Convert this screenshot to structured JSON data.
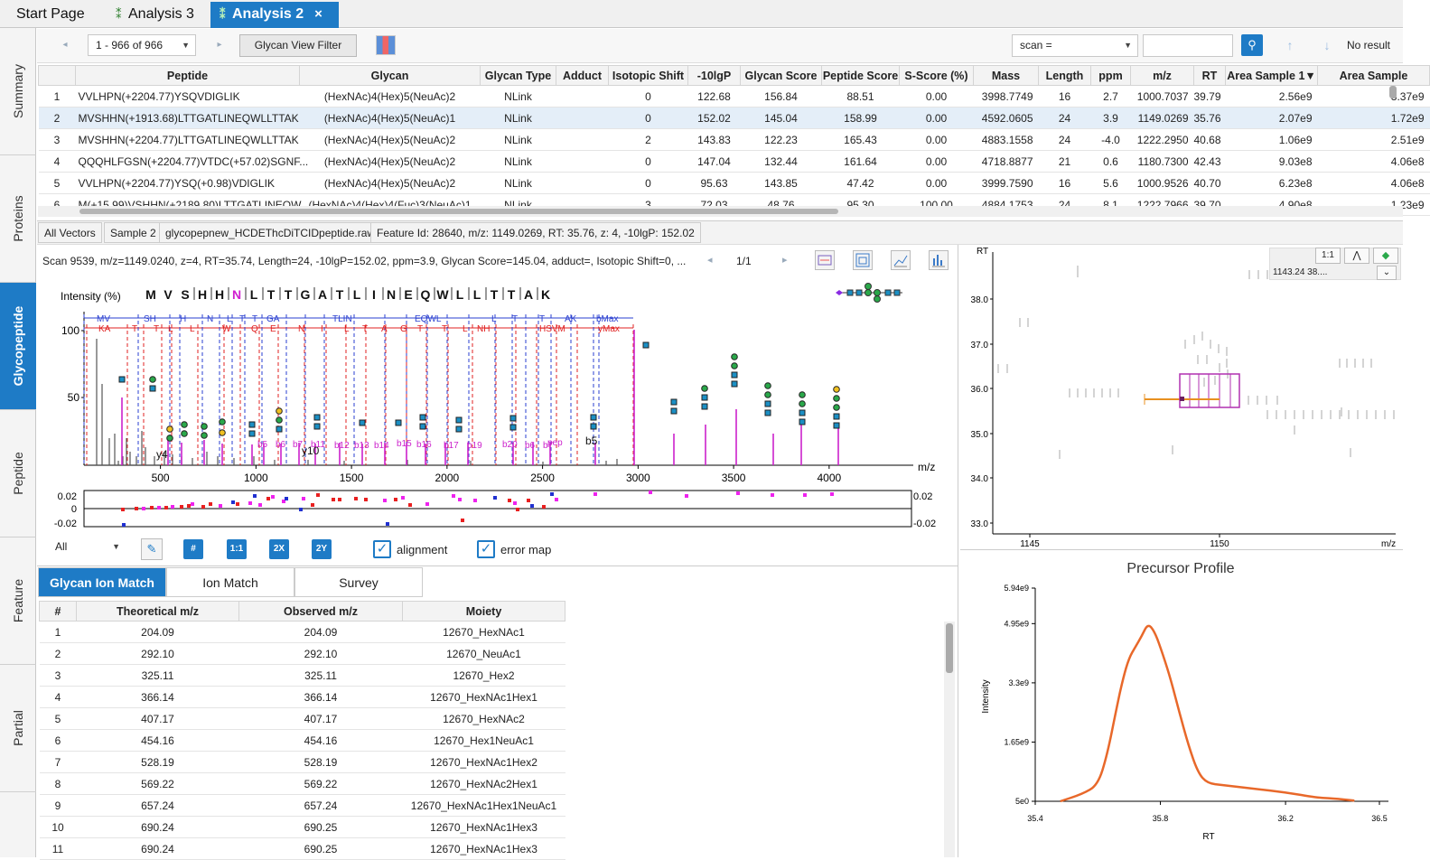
{
  "tabs": [
    {
      "label": "Start Page"
    },
    {
      "label": "Analysis 3"
    },
    {
      "label": "Analysis 2"
    }
  ],
  "close_glyph": "×",
  "side_tabs": [
    "Summary",
    "Proteins",
    "Glycopeptide",
    "Peptide",
    "Feature",
    "Partial"
  ],
  "toolbar": {
    "page_range": "1 - 966 of 966",
    "filter_button": "Glycan View Filter",
    "search_field": "scan =",
    "search_value": "",
    "no_result": "No result"
  },
  "table": {
    "columns": [
      "",
      "Peptide",
      "Glycan",
      "Glycan Type",
      "Adduct",
      "Isotopic Shift",
      "-10lgP",
      "Glycan Score",
      "Peptide Score",
      "S-Score (%)",
      "Mass",
      "Length",
      "ppm",
      "m/z",
      "RT",
      "Area Sample 1▼",
      "Area Sample"
    ],
    "rows": [
      [
        "1",
        "VVLHPN(+2204.77)YSQVDIGLIK",
        "(HexNAc)4(Hex)5(NeuAc)2",
        "NLink",
        "",
        "0",
        "122.68",
        "156.84",
        "88.51",
        "0.00",
        "3998.7749",
        "16",
        "2.7",
        "1000.7037",
        "39.79",
        "2.56e9",
        "3.37e9"
      ],
      [
        "2",
        "MVSHHN(+1913.68)LTTGATLINEQWLLTTAK",
        "(HexNAc)4(Hex)5(NeuAc)1",
        "NLink",
        "",
        "0",
        "152.02",
        "145.04",
        "158.99",
        "0.00",
        "4592.0605",
        "24",
        "3.9",
        "1149.0269",
        "35.76",
        "2.07e9",
        "1.72e9"
      ],
      [
        "3",
        "MVSHHN(+2204.77)LTTGATLINEQWLLTTAK",
        "(HexNAc)4(Hex)5(NeuAc)2",
        "NLink",
        "",
        "2",
        "143.83",
        "122.23",
        "165.43",
        "0.00",
        "4883.1558",
        "24",
        "-4.0",
        "1222.2950",
        "40.68",
        "1.06e9",
        "2.51e9"
      ],
      [
        "4",
        "QQQHLFGSN(+2204.77)VTDC(+57.02)SGNF...",
        "(HexNAc)4(Hex)5(NeuAc)2",
        "NLink",
        "",
        "0",
        "147.04",
        "132.44",
        "161.64",
        "0.00",
        "4718.8877",
        "21",
        "0.6",
        "1180.7300",
        "42.43",
        "9.03e8",
        "4.06e8"
      ],
      [
        "5",
        "VVLHPN(+2204.77)YSQ(+0.98)VDIGLIK",
        "(HexNAc)4(Hex)5(NeuAc)2",
        "NLink",
        "",
        "0",
        "95.63",
        "143.85",
        "47.42",
        "0.00",
        "3999.7590",
        "16",
        "5.6",
        "1000.9526",
        "40.70",
        "6.23e8",
        "4.06e8"
      ],
      [
        "6",
        "M(+15.99)VSHHN(+2189.80)LTTGATLINEQW...",
        "(HexNAc)4(Hex)4(Fuc)3(NeuAc)1",
        "NLink",
        "",
        "3",
        "72.03",
        "48.76",
        "95.30",
        "100.00",
        "4884.1753",
        "24",
        "8.1",
        "1222.7966",
        "39.70",
        "4.90e8",
        "1.23e9"
      ]
    ]
  },
  "breadcrumb": [
    "All Vectors",
    "Sample 2",
    "glycopepnew_HCDEThcDiTCIDpeptide.raw",
    "Feature Id: 28640, m/z: 1149.0269, RT: 35.76, z: 4, -10lgP: 152.02"
  ],
  "spectrum": {
    "info": "Scan 9539, m/z=1149.0240, z=4, RT=35.74, Length=24, -10lgP=152.02, ppm=3.9, Glycan Score=145.04, adduct=, Isotopic Shift=0, ...",
    "page": "1/1",
    "ylabel": "Intensity (%)",
    "sequence": [
      "M",
      "V",
      "S",
      "H",
      "H",
      "N",
      "L",
      "T",
      "T",
      "G",
      "A",
      "T",
      "L",
      "I",
      "N",
      "E",
      "Q",
      "W",
      "L",
      "L",
      "T",
      "T",
      "A",
      "K"
    ],
    "xlabel": "m/z",
    "y_ticks": [
      "100",
      "50"
    ],
    "x_ticks": [
      "500",
      "1000",
      "1500",
      "2000",
      "2500",
      "3000",
      "3500",
      "4000"
    ],
    "b_labels": [
      "MV",
      "SH",
      "H",
      "N",
      "L",
      "T",
      "T",
      "GA",
      "TLIN",
      "EQWL",
      "L",
      "T",
      "T",
      "AK",
      "bMax"
    ],
    "y_labels": [
      "KA",
      "T",
      "T",
      "L",
      "L",
      "W",
      "Q",
      "E",
      "N",
      "I",
      "L",
      "T",
      "A",
      "G",
      "T",
      "T",
      "L",
      "NH",
      "HSVM",
      "yMax"
    ],
    "peak_labels": [
      "y4",
      "y10",
      "b5",
      "b6",
      "b7",
      "b11",
      "b12",
      "b13",
      "b14",
      "b15",
      "b16",
      "b17",
      "b19",
      "b20",
      "pep",
      "b5",
      "b6",
      "b7"
    ],
    "error_ticks": [
      "0.02",
      "0",
      "-0.02"
    ],
    "error_ticks_right": [
      "0.02",
      "-0.02"
    ],
    "filter_select": "All",
    "btn_hash": "#",
    "btn_11": "1:1",
    "btn_2x": "2X",
    "btn_2y": "2Y",
    "alignment_label": "alignment",
    "errormap_label": "error map",
    "colors": {
      "b_ion": "#2a3fd0",
      "y_ion": "#e02020",
      "glyco_peak": "#cc22cc",
      "peak": "#555555",
      "hexnac": "#1b8fc4",
      "hex": "#2aa84a",
      "neuac": "#8a2be2",
      "gal": "#f0c020"
    }
  },
  "heatmap": {
    "ylabel": "RT",
    "xlabel": "m/z",
    "y_ticks": [
      "38.0",
      "37.0",
      "36.0",
      "35.0",
      "34.0",
      "33.0"
    ],
    "x_ticks": [
      "1145",
      "1150"
    ],
    "tooltip": "1143.24 38....",
    "btn_11": "1:1"
  },
  "ion_tabs": [
    "Glycan Ion Match",
    "Ion Match",
    "Survey"
  ],
  "ion_table": {
    "columns": [
      "#",
      "Theoretical m/z",
      "Observed m/z",
      "Moiety"
    ],
    "rows": [
      [
        "1",
        "204.09",
        "204.09",
        "12670_HexNAc1"
      ],
      [
        "2",
        "292.10",
        "292.10",
        "12670_NeuAc1"
      ],
      [
        "3",
        "325.11",
        "325.11",
        "12670_Hex2"
      ],
      [
        "4",
        "366.14",
        "366.14",
        "12670_HexNAc1Hex1"
      ],
      [
        "5",
        "407.17",
        "407.17",
        "12670_HexNAc2"
      ],
      [
        "6",
        "454.16",
        "454.16",
        "12670_Hex1NeuAc1"
      ],
      [
        "7",
        "528.19",
        "528.19",
        "12670_HexNAc1Hex2"
      ],
      [
        "8",
        "569.22",
        "569.22",
        "12670_HexNAc2Hex1"
      ],
      [
        "9",
        "657.24",
        "657.24",
        "12670_HexNAc1Hex1NeuAc1"
      ],
      [
        "10",
        "690.24",
        "690.25",
        "12670_HexNAc1Hex3"
      ],
      [
        "11",
        "690.24",
        "690.25",
        "12670_HexNAc1Hex3"
      ]
    ]
  },
  "chart_data": {
    "type": "line",
    "title": "Precursor Profile",
    "xlabel": "RT",
    "ylabel": "Intensity",
    "x_ticks": [
      "35.4",
      "35.8",
      "36.2",
      "36.5"
    ],
    "y_ticks": [
      "5.94e9",
      "4.95e9",
      "3.3e9",
      "1.65e9",
      "5e0"
    ],
    "xlim": [
      35.4,
      36.5
    ],
    "ylim": [
      0,
      5940000000
    ],
    "series": [
      {
        "color": "#e8682a",
        "x": [
          35.48,
          35.55,
          35.6,
          35.63,
          35.66,
          35.68,
          35.7,
          35.72,
          35.74,
          35.76,
          35.78,
          35.8,
          35.83,
          35.86,
          35.89,
          35.92,
          35.95,
          36.0,
          36.1,
          36.2,
          36.3,
          36.35,
          36.42
        ],
        "y": [
          0,
          200000000,
          450000000,
          1300000000,
          2600000000,
          3400000000,
          4000000000,
          4300000000,
          4600000000,
          4950000000,
          4750000000,
          4300000000,
          3500000000,
          2500000000,
          1550000000,
          800000000,
          500000000,
          450000000,
          350000000,
          250000000,
          100000000,
          80000000,
          20000000
        ]
      }
    ]
  }
}
